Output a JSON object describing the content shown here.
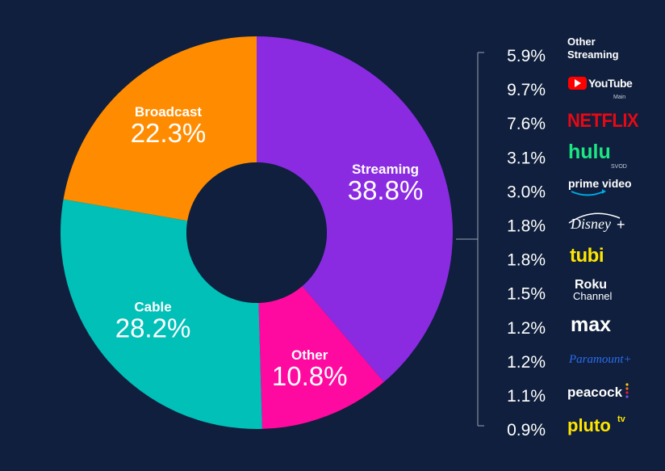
{
  "chart_data": {
    "type": "pie",
    "title": "",
    "segments": [
      {
        "name": "Streaming",
        "value": 38.8,
        "label": "38.8%",
        "color": "#8a2be2"
      },
      {
        "name": "Other",
        "value": 10.8,
        "label": "10.8%",
        "color": "#ff0aa0"
      },
      {
        "name": "Cable",
        "value": 28.2,
        "label": "28.2%",
        "color": "#00c0b8"
      },
      {
        "name": "Broadcast",
        "value": 22.3,
        "label": "22.3%",
        "color": "#ff8c00"
      }
    ],
    "streaming_breakdown": [
      {
        "name": "Other Streaming",
        "value": 5.9,
        "label": "5.9%",
        "icon": "other-streaming-text"
      },
      {
        "name": "YouTube",
        "sub": "Main",
        "value": 9.7,
        "label": "9.7%",
        "icon": "youtube-logo"
      },
      {
        "name": "NETFLIX",
        "value": 7.6,
        "label": "7.6%",
        "icon": "netflix-logo"
      },
      {
        "name": "hulu",
        "sub": "SVOD",
        "value": 3.1,
        "label": "3.1%",
        "icon": "hulu-logo"
      },
      {
        "name": "prime video",
        "value": 3.0,
        "label": "3.0%",
        "icon": "prime-video-logo"
      },
      {
        "name": "Disney+",
        "value": 1.8,
        "label": "1.8%",
        "icon": "disney-plus-logo"
      },
      {
        "name": "tubi",
        "value": 1.8,
        "label": "1.8%",
        "icon": "tubi-logo"
      },
      {
        "name": "Roku Channel",
        "value": 1.5,
        "label": "1.5%",
        "icon": "roku-channel-logo"
      },
      {
        "name": "max",
        "value": 1.2,
        "label": "1.2%",
        "icon": "max-logo"
      },
      {
        "name": "Paramount+",
        "value": 1.2,
        "label": "1.2%",
        "icon": "paramount-plus-logo"
      },
      {
        "name": "peacock",
        "value": 1.1,
        "label": "1.1%",
        "icon": "peacock-logo"
      },
      {
        "name": "pluto tv",
        "value": 0.9,
        "label": "0.9%",
        "icon": "pluto-tv-logo"
      }
    ]
  },
  "logos": {
    "other_streaming_line1": "Other",
    "other_streaming_line2": "Streaming",
    "youtube_text": "YouTube",
    "youtube_sub": "Main",
    "netflix_text": "NETFLIX",
    "hulu_text": "hulu",
    "hulu_sub": "SVOD",
    "prime_text": "prime video",
    "disney_text": "Disney",
    "disney_plus": "+",
    "tubi_text": "tubi",
    "roku_line1": "Roku",
    "roku_line2": "Channel",
    "max_text": "max",
    "paramount_text": "Paramount+",
    "peacock_text": "peacock",
    "pluto_text": "pluto",
    "pluto_tv": "tv"
  },
  "colors": {
    "background": "#0f1f3d",
    "netflix": "#e50914",
    "youtube": "#ff0000",
    "hulu": "#1ce783",
    "tubi": "#ffe600",
    "paramount": "#2b6df0",
    "pluto": "#ffe600",
    "prime": "#00a8e1"
  }
}
